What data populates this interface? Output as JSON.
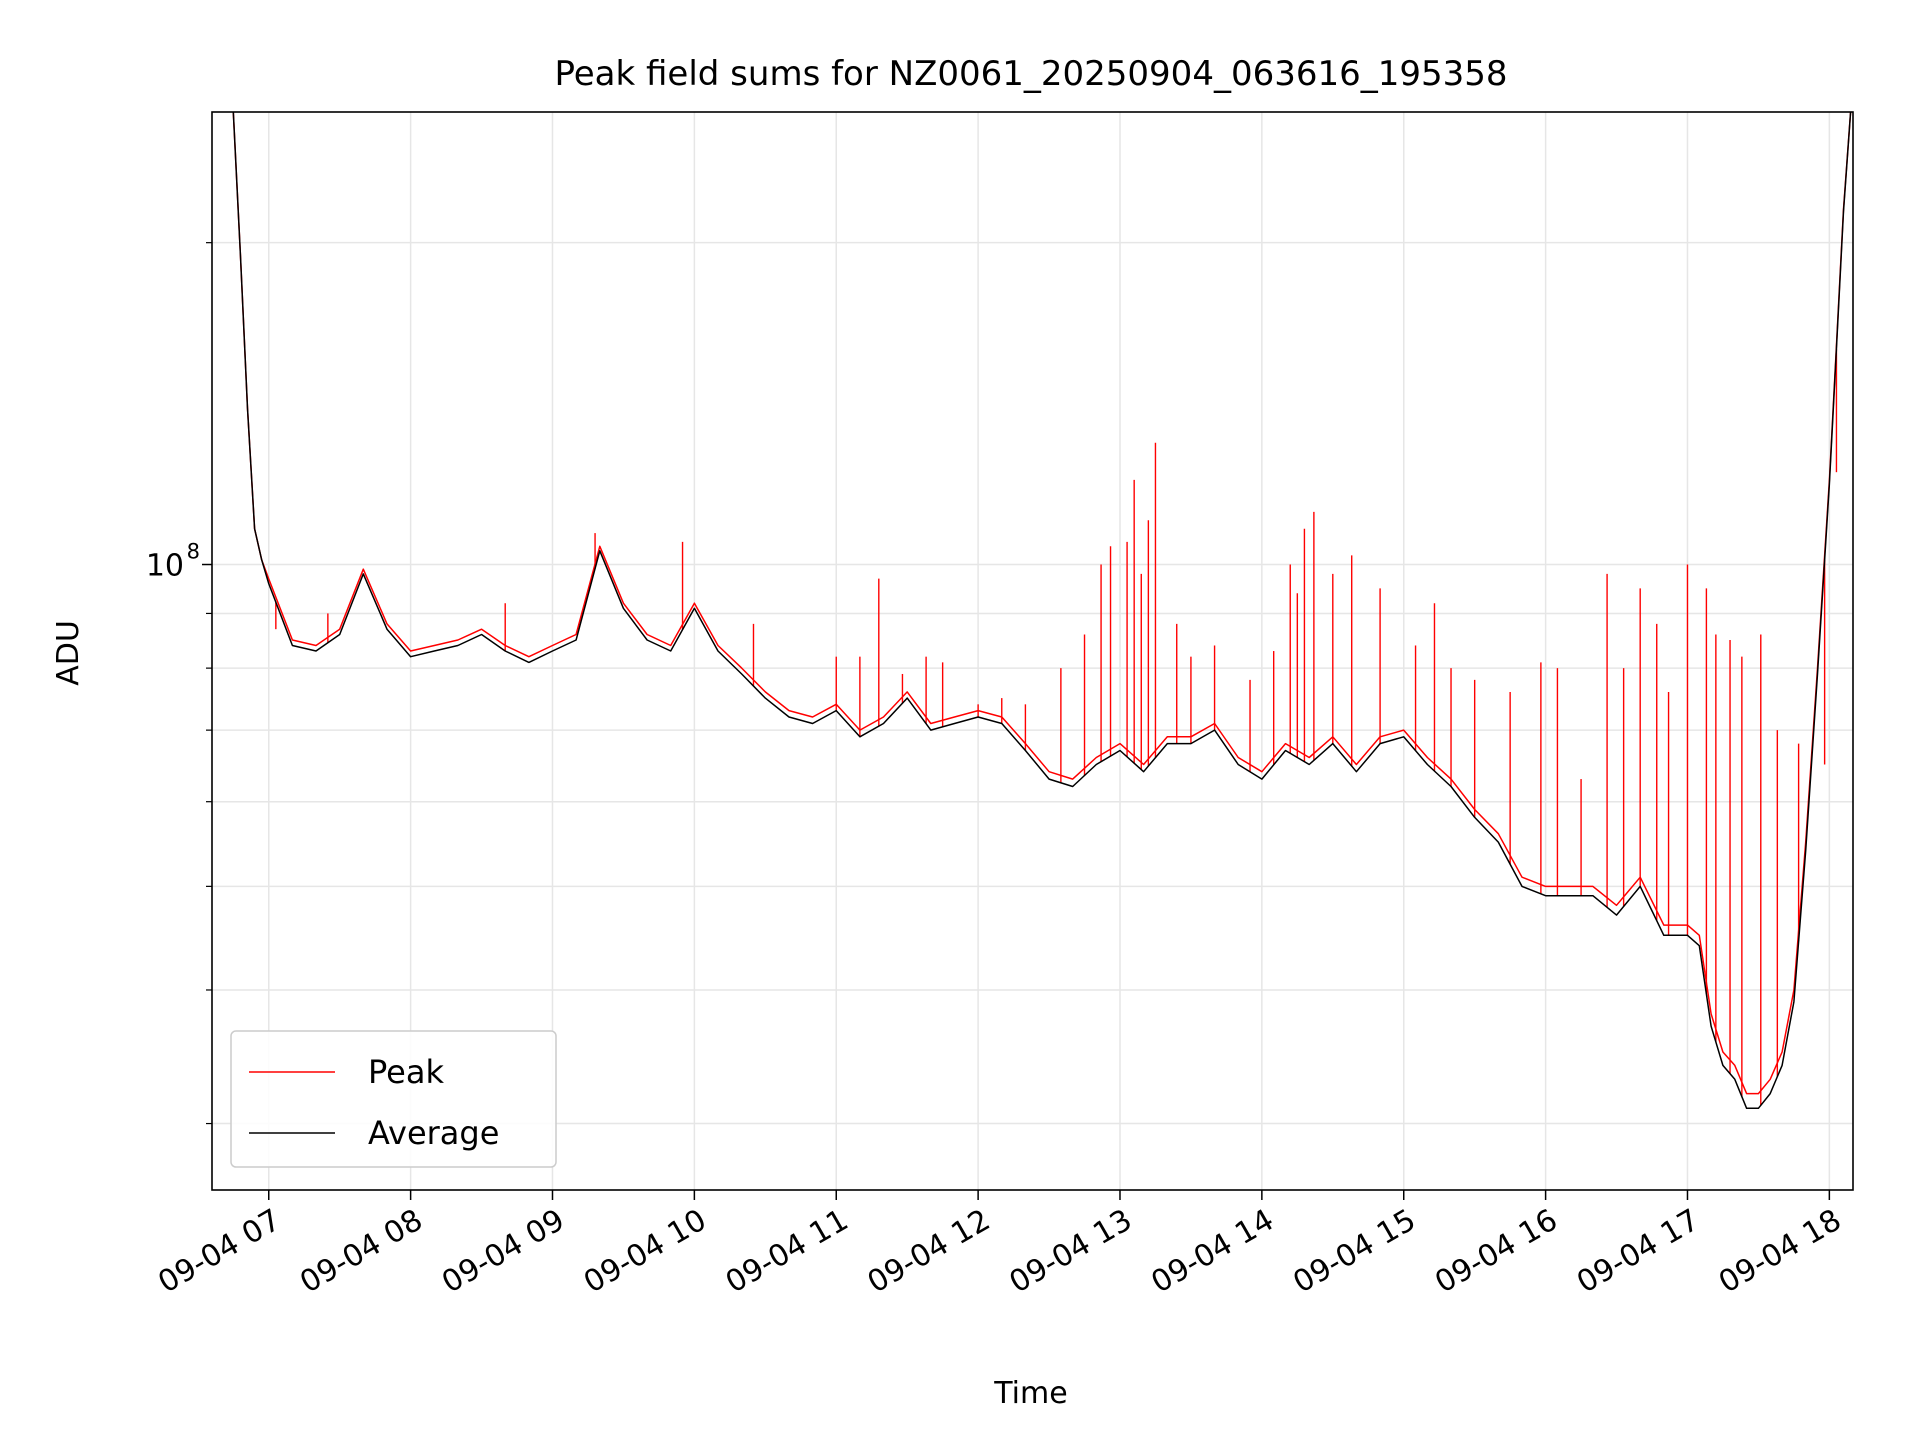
{
  "chart_data": {
    "type": "line",
    "title": "Peak field sums for NZ0061_20250904_063616_195358",
    "xlabel": "Time",
    "ylabel": "ADU",
    "y_scale": "log",
    "grid": true,
    "legend_position": "lower-left",
    "ylim": [
      26000000,
      265000000
    ],
    "xlim": [
      "2025-09-04 06:36",
      "2025-09-04 18:10"
    ],
    "x_ticks": [
      "09-04 07",
      "09-04 08",
      "09-04 09",
      "09-04 10",
      "09-04 11",
      "09-04 12",
      "09-04 13",
      "09-04 14",
      "09-04 15",
      "09-04 16",
      "09-04 17",
      "09-04 18"
    ],
    "y_ticks": [
      {
        "value": 100000000,
        "label_base": "10",
        "label_exp": "8"
      }
    ],
    "x": [
      "2025-09-04 06:45",
      "2025-09-04 06:48",
      "2025-09-04 06:51",
      "2025-09-04 06:54",
      "2025-09-04 06:57",
      "2025-09-04 07:00",
      "2025-09-04 07:10",
      "2025-09-04 07:20",
      "2025-09-04 07:30",
      "2025-09-04 07:40",
      "2025-09-04 07:50",
      "2025-09-04 08:00",
      "2025-09-04 08:10",
      "2025-09-04 08:20",
      "2025-09-04 08:30",
      "2025-09-04 08:40",
      "2025-09-04 08:50",
      "2025-09-04 09:00",
      "2025-09-04 09:10",
      "2025-09-04 09:20",
      "2025-09-04 09:30",
      "2025-09-04 09:40",
      "2025-09-04 09:50",
      "2025-09-04 10:00",
      "2025-09-04 10:10",
      "2025-09-04 10:20",
      "2025-09-04 10:30",
      "2025-09-04 10:40",
      "2025-09-04 10:50",
      "2025-09-04 11:00",
      "2025-09-04 11:10",
      "2025-09-04 11:20",
      "2025-09-04 11:30",
      "2025-09-04 11:40",
      "2025-09-04 11:50",
      "2025-09-04 12:00",
      "2025-09-04 12:10",
      "2025-09-04 12:20",
      "2025-09-04 12:30",
      "2025-09-04 12:40",
      "2025-09-04 12:50",
      "2025-09-04 13:00",
      "2025-09-04 13:10",
      "2025-09-04 13:20",
      "2025-09-04 13:30",
      "2025-09-04 13:40",
      "2025-09-04 13:50",
      "2025-09-04 14:00",
      "2025-09-04 14:10",
      "2025-09-04 14:20",
      "2025-09-04 14:30",
      "2025-09-04 14:40",
      "2025-09-04 14:50",
      "2025-09-04 15:00",
      "2025-09-04 15:10",
      "2025-09-04 15:20",
      "2025-09-04 15:30",
      "2025-09-04 15:40",
      "2025-09-04 15:50",
      "2025-09-04 16:00",
      "2025-09-04 16:10",
      "2025-09-04 16:20",
      "2025-09-04 16:30",
      "2025-09-04 16:40",
      "2025-09-04 16:50",
      "2025-09-04 17:00",
      "2025-09-04 17:05",
      "2025-09-04 17:10",
      "2025-09-04 17:15",
      "2025-09-04 17:20",
      "2025-09-04 17:25",
      "2025-09-04 17:30",
      "2025-09-04 17:35",
      "2025-09-04 17:40",
      "2025-09-04 17:45",
      "2025-09-04 17:50",
      "2025-09-04 17:55",
      "2025-09-04 18:00",
      "2025-09-04 18:03",
      "2025-09-04 18:06",
      "2025-09-04 18:09"
    ],
    "series": [
      {
        "name": "Peak",
        "color": "#ff0000",
        "values": [
          265000000,
          195000000,
          140000000,
          108000000,
          101000000,
          97000000,
          85000000,
          84000000,
          87000000,
          99000000,
          88000000,
          83000000,
          84000000,
          85000000,
          87000000,
          84000000,
          82000000,
          84000000,
          86000000,
          104000000,
          92000000,
          86000000,
          84000000,
          92000000,
          84000000,
          80000000,
          76000000,
          73000000,
          72000000,
          74000000,
          70000000,
          72000000,
          76000000,
          71000000,
          72000000,
          73000000,
          72000000,
          68000000,
          64000000,
          63000000,
          66000000,
          68000000,
          65000000,
          69000000,
          69000000,
          71000000,
          66000000,
          64000000,
          68000000,
          66000000,
          69000000,
          65000000,
          69000000,
          70000000,
          66000000,
          63000000,
          59000000,
          56000000,
          51000000,
          50000000,
          50000000,
          50000000,
          48000000,
          51000000,
          46000000,
          46000000,
          45000000,
          38000000,
          35000000,
          34000000,
          32000000,
          32000000,
          33000000,
          35000000,
          40000000,
          55000000,
          80000000,
          120000000,
          160000000,
          215000000,
          265000000
        ]
      },
      {
        "name": "Average",
        "color": "#000000",
        "values": [
          265000000,
          195000000,
          140000000,
          108000000,
          101000000,
          96000000,
          84000000,
          83000000,
          86000000,
          98000000,
          87000000,
          82000000,
          83000000,
          84000000,
          86000000,
          83000000,
          81000000,
          83000000,
          85000000,
          103000000,
          91000000,
          85000000,
          83000000,
          91000000,
          83000000,
          79000000,
          75000000,
          72000000,
          71000000,
          73000000,
          69000000,
          71000000,
          75000000,
          70000000,
          71000000,
          72000000,
          71000000,
          67000000,
          63000000,
          62000000,
          65000000,
          67000000,
          64000000,
          68000000,
          68000000,
          70000000,
          65000000,
          63000000,
          67000000,
          65000000,
          68000000,
          64000000,
          68000000,
          69000000,
          65000000,
          62000000,
          58000000,
          55000000,
          50000000,
          49000000,
          49000000,
          49000000,
          47000000,
          50000000,
          45000000,
          45000000,
          44000000,
          37000000,
          34000000,
          33000000,
          31000000,
          31000000,
          32000000,
          34000000,
          39000000,
          54000000,
          79000000,
          119000000,
          159000000,
          214000000,
          265000000
        ]
      }
    ],
    "peak_spikes": [
      [
        "2025-09-04 07:03",
        87000000
      ],
      [
        "2025-09-04 07:25",
        90000000
      ],
      [
        "2025-09-04 08:40",
        92000000
      ],
      [
        "2025-09-04 09:18",
        107000000
      ],
      [
        "2025-09-04 09:55",
        105000000
      ],
      [
        "2025-09-04 10:25",
        88000000
      ],
      [
        "2025-09-04 11:00",
        82000000
      ],
      [
        "2025-09-04 11:10",
        82000000
      ],
      [
        "2025-09-04 11:18",
        97000000
      ],
      [
        "2025-09-04 11:28",
        79000000
      ],
      [
        "2025-09-04 11:38",
        82000000
      ],
      [
        "2025-09-04 11:45",
        81000000
      ],
      [
        "2025-09-04 12:00",
        74000000
      ],
      [
        "2025-09-04 12:10",
        75000000
      ],
      [
        "2025-09-04 12:20",
        74000000
      ],
      [
        "2025-09-04 12:35",
        80000000
      ],
      [
        "2025-09-04 12:45",
        86000000
      ],
      [
        "2025-09-04 12:52",
        100000000
      ],
      [
        "2025-09-04 12:56",
        104000000
      ],
      [
        "2025-09-04 13:03",
        105000000
      ],
      [
        "2025-09-04 13:06",
        120000000
      ],
      [
        "2025-09-04 13:09",
        98000000
      ],
      [
        "2025-09-04 13:12",
        110000000
      ],
      [
        "2025-09-04 13:15",
        130000000
      ],
      [
        "2025-09-04 13:24",
        88000000
      ],
      [
        "2025-09-04 13:30",
        82000000
      ],
      [
        "2025-09-04 13:40",
        84000000
      ],
      [
        "2025-09-04 13:55",
        78000000
      ],
      [
        "2025-09-04 14:05",
        83000000
      ],
      [
        "2025-09-04 14:12",
        100000000
      ],
      [
        "2025-09-04 14:15",
        94000000
      ],
      [
        "2025-09-04 14:18",
        108000000
      ],
      [
        "2025-09-04 14:22",
        112000000
      ],
      [
        "2025-09-04 14:30",
        98000000
      ],
      [
        "2025-09-04 14:38",
        102000000
      ],
      [
        "2025-09-04 14:50",
        95000000
      ],
      [
        "2025-09-04 15:05",
        84000000
      ],
      [
        "2025-09-04 15:13",
        92000000
      ],
      [
        "2025-09-04 15:20",
        80000000
      ],
      [
        "2025-09-04 15:30",
        78000000
      ],
      [
        "2025-09-04 15:45",
        76000000
      ],
      [
        "2025-09-04 15:58",
        81000000
      ],
      [
        "2025-09-04 16:05",
        80000000
      ],
      [
        "2025-09-04 16:15",
        63000000
      ],
      [
        "2025-09-04 16:26",
        98000000
      ],
      [
        "2025-09-04 16:33",
        80000000
      ],
      [
        "2025-09-04 16:40",
        95000000
      ],
      [
        "2025-09-04 16:47",
        88000000
      ],
      [
        "2025-09-04 16:52",
        76000000
      ],
      [
        "2025-09-04 17:00",
        100000000
      ],
      [
        "2025-09-04 17:08",
        95000000
      ],
      [
        "2025-09-04 17:12",
        86000000
      ],
      [
        "2025-09-04 17:18",
        85000000
      ],
      [
        "2025-09-04 17:23",
        82000000
      ],
      [
        "2025-09-04 17:31",
        86000000
      ],
      [
        "2025-09-04 17:38",
        70000000
      ],
      [
        "2025-09-04 17:47",
        68000000
      ],
      [
        "2025-09-04 17:58",
        65000000
      ],
      [
        "2025-09-04 18:03",
        122000000
      ]
    ],
    "legend": [
      {
        "label": "Peak",
        "color": "#ff0000"
      },
      {
        "label": "Average",
        "color": "#000000"
      }
    ]
  }
}
